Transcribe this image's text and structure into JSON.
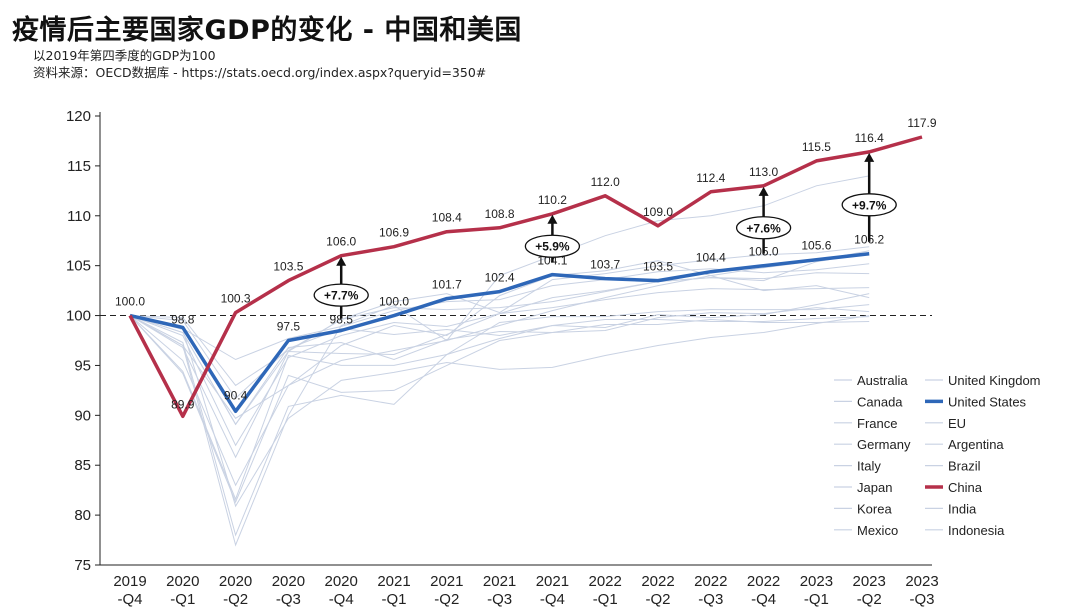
{
  "header": {
    "title": "疫情后主要国家GDP的变化 - 中国和美国",
    "subtitle": "以2019年第四季度的GDP为100",
    "source": "资料来源：OECD数据库 - https://stats.oecd.org/index.aspx?queryid=350#"
  },
  "chart_data": {
    "type": "line",
    "title": "疫情后主要国家GDP的变化 - 中国和美国",
    "ylim": [
      75,
      120
    ],
    "yticks": [
      75,
      80,
      85,
      90,
      95,
      100,
      105,
      110,
      115,
      120
    ],
    "baseline": 100,
    "categories": [
      [
        "2019",
        "-Q4"
      ],
      [
        "2020",
        "-Q1"
      ],
      [
        "2020",
        "-Q2"
      ],
      [
        "2020",
        "-Q3"
      ],
      [
        "2020",
        "-Q4"
      ],
      [
        "2021",
        "-Q1"
      ],
      [
        "2021",
        "-Q2"
      ],
      [
        "2021",
        "-Q3"
      ],
      [
        "2021",
        "-Q4"
      ],
      [
        "2022",
        "-Q1"
      ],
      [
        "2022",
        "-Q2"
      ],
      [
        "2022",
        "-Q3"
      ],
      [
        "2022",
        "-Q4"
      ],
      [
        "2023",
        "-Q1"
      ],
      [
        "2023",
        "-Q2"
      ],
      [
        "2023",
        "-Q3"
      ]
    ],
    "series": [
      {
        "name": "China",
        "color": "#b5304a",
        "highlight": true,
        "values": [
          100.0,
          89.9,
          100.3,
          103.5,
          106.0,
          106.9,
          108.4,
          108.8,
          110.2,
          112.0,
          109.0,
          112.4,
          113.0,
          115.5,
          116.4,
          117.9
        ],
        "labels": [
          "100.0",
          "89.9",
          "100.3",
          "103.5",
          "106.0",
          "106.9",
          "108.4",
          "108.8",
          "110.2",
          "112.0",
          "109.0",
          "112.4",
          "113.0",
          "115.5",
          "116.4",
          "117.9"
        ]
      },
      {
        "name": "United States",
        "color": "#2e67b8",
        "highlight": true,
        "values": [
          100.0,
          98.8,
          90.4,
          97.5,
          98.5,
          100.0,
          101.7,
          102.4,
          104.1,
          103.7,
          103.5,
          104.4,
          105.0,
          105.6,
          106.2,
          null
        ],
        "labels": [
          "",
          "98.8",
          "90.4",
          "97.5",
          "98.5",
          "100.0",
          "101.7",
          "102.4",
          "104.1",
          "103.7",
          "103.5",
          "104.4",
          "105.0",
          "105.6",
          "106.2",
          ""
        ]
      },
      {
        "name": "Australia",
        "color": "#c9d2e3",
        "values": [
          100,
          99.8,
          93.0,
          96.5,
          99.6,
          101.4,
          102.2,
          100.3,
          103.6,
          104.2,
          105.0,
          105.6,
          106.1,
          106.3,
          106.9,
          null
        ]
      },
      {
        "name": "United Kingdom",
        "color": "#c9d2e3",
        "values": [
          100,
          97.3,
          78.0,
          90.9,
          92.0,
          91.1,
          96.1,
          97.7,
          99.0,
          99.6,
          99.6,
          99.4,
          99.4,
          99.7,
          99.9,
          null
        ]
      },
      {
        "name": "Canada",
        "color": "#c9d2e3",
        "values": [
          100,
          98.0,
          87.0,
          95.8,
          98.0,
          99.3,
          98.9,
          100.2,
          101.8,
          102.5,
          103.4,
          103.8,
          103.7,
          104.3,
          104.2,
          null
        ]
      },
      {
        "name": "EU",
        "color": "#c9d2e3",
        "values": [
          100,
          96.8,
          85.8,
          96.4,
          96.2,
          96.1,
          98.1,
          100.2,
          100.8,
          101.6,
          102.3,
          102.7,
          102.6,
          102.7,
          102.8,
          null
        ]
      },
      {
        "name": "France",
        "color": "#c9d2e3",
        "values": [
          100,
          94.4,
          81.6,
          96.0,
          95.0,
          95.0,
          96.1,
          99.3,
          99.9,
          99.9,
          100.4,
          100.6,
          100.6,
          100.6,
          101.1,
          null
        ]
      },
      {
        "name": "Argentina",
        "color": "#c9d2e3",
        "values": [
          100,
          95.5,
          83.0,
          93.0,
          97.0,
          99.0,
          98.0,
          102.0,
          104.0,
          104.5,
          105.5,
          104.0,
          102.5,
          103.0,
          101.8,
          null
        ]
      },
      {
        "name": "Germany",
        "color": "#c9d2e3",
        "values": [
          100,
          98.3,
          89.1,
          96.8,
          97.3,
          95.6,
          97.6,
          98.4,
          98.3,
          99.1,
          99.1,
          99.6,
          99.3,
          99.3,
          99.4,
          null
        ]
      },
      {
        "name": "Brazil",
        "color": "#c9d2e3",
        "values": [
          100,
          98.3,
          89.1,
          96.4,
          99.6,
          100.8,
          100.6,
          100.8,
          101.4,
          102.4,
          103.4,
          103.8,
          103.5,
          105.4,
          106.3,
          null
        ]
      },
      {
        "name": "Italy",
        "color": "#c9d2e3",
        "values": [
          100,
          94.2,
          81.3,
          94.0,
          92.3,
          92.5,
          95.0,
          97.5,
          98.3,
          98.5,
          99.8,
          100.3,
          100.2,
          100.8,
          100.4,
          null
        ]
      },
      {
        "name": "India",
        "color": "#c9d2e3",
        "values": [
          100,
          97.0,
          77.0,
          90.0,
          99.0,
          101.0,
          97.5,
          104.0,
          106.0,
          108.0,
          109.5,
          110.0,
          111.0,
          113.0,
          114.0,
          null
        ]
      },
      {
        "name": "Japan",
        "color": "#c9d2e3",
        "values": [
          100,
          99.5,
          91.7,
          96.7,
          98.7,
          98.1,
          98.6,
          98.0,
          99.0,
          98.8,
          100.1,
          99.8,
          100.1,
          101.1,
          102.2,
          null
        ]
      },
      {
        "name": "Indonesia",
        "color": "#c9d2e3",
        "values": [
          100,
          97.0,
          89.7,
          93.0,
          95.5,
          96.5,
          97.5,
          99.0,
          100.5,
          101.8,
          103.0,
          104.0,
          104.8,
          105.5,
          106.5,
          null
        ]
      },
      {
        "name": "Korea",
        "color": "#c9d2e3",
        "values": [
          100,
          98.7,
          95.6,
          97.7,
          98.9,
          100.5,
          101.4,
          101.6,
          103.0,
          103.6,
          104.4,
          104.7,
          104.3,
          104.6,
          105.2,
          null
        ]
      },
      {
        "name": "Mexico",
        "color": "#c9d2e3",
        "values": [
          100,
          98.6,
          80.9,
          89.7,
          93.5,
          94.3,
          95.3,
          94.6,
          94.8,
          96.0,
          97.0,
          97.8,
          98.3,
          99.2,
          100.0,
          null
        ]
      }
    ],
    "annotations": [
      {
        "label": "+7.7%",
        "index": 4,
        "from": 98.5,
        "to": 106.0
      },
      {
        "label": "+5.9%",
        "index": 8,
        "from": 104.1,
        "to": 110.2
      },
      {
        "label": "+7.6%",
        "index": 12,
        "from": 105.0,
        "to": 113.0
      },
      {
        "label": "+9.7%",
        "index": 14,
        "from": 106.2,
        "to": 116.4
      }
    ],
    "legend": {
      "position": "bottom-right",
      "entries": [
        {
          "name": "Australia",
          "color": "#c9d2e3",
          "bold": false
        },
        {
          "name": "United Kingdom",
          "color": "#c9d2e3",
          "bold": false
        },
        {
          "name": "Canada",
          "color": "#c9d2e3",
          "bold": false
        },
        {
          "name": "United States",
          "color": "#2e67b8",
          "bold": true
        },
        {
          "name": "France",
          "color": "#c9d2e3",
          "bold": false
        },
        {
          "name": "EU",
          "color": "#c9d2e3",
          "bold": false
        },
        {
          "name": "Germany",
          "color": "#c9d2e3",
          "bold": false
        },
        {
          "name": "Argentina",
          "color": "#c9d2e3",
          "bold": false
        },
        {
          "name": "Italy",
          "color": "#c9d2e3",
          "bold": false
        },
        {
          "name": "Brazil",
          "color": "#c9d2e3",
          "bold": false
        },
        {
          "name": "Japan",
          "color": "#c9d2e3",
          "bold": false
        },
        {
          "name": "China",
          "color": "#b5304a",
          "bold": true
        },
        {
          "name": "Korea",
          "color": "#c9d2e3",
          "bold": false
        },
        {
          "name": "India",
          "color": "#c9d2e3",
          "bold": false
        },
        {
          "name": "Mexico",
          "color": "#c9d2e3",
          "bold": false
        },
        {
          "name": "Indonesia",
          "color": "#c9d2e3",
          "bold": false
        }
      ]
    }
  }
}
